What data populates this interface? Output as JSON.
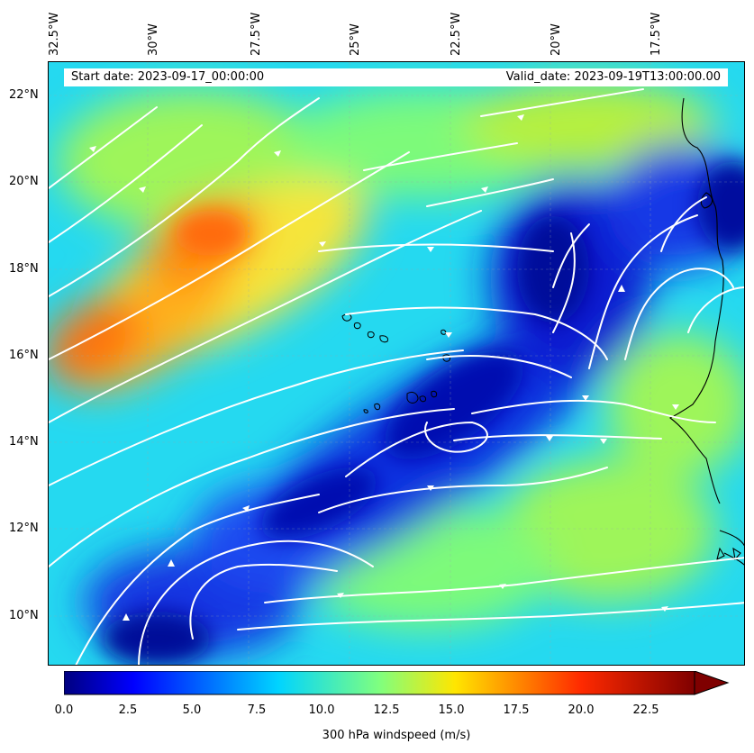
{
  "map": {
    "start_date": "Start date: 2023-09-17_00:00:00",
    "valid_date": "Valid_date: 2023-09-19T13:00:00.00",
    "lon_labels": [
      "32.5°W",
      "30°W",
      "27.5°W",
      "25°W",
      "22.5°W",
      "20°W",
      "17.5°W"
    ],
    "lat_labels": [
      "22°N",
      "20°N",
      "18°N",
      "16°N",
      "14°N",
      "12°N",
      "10°N"
    ],
    "field": "300 hPa windspeed",
    "colorbar": {
      "label": "300 hPa windspeed (m/s)",
      "ticks": [
        "0.0",
        "2.5",
        "5.0",
        "7.5",
        "10.0",
        "12.5",
        "15.0",
        "17.5",
        "20.0",
        "22.5"
      ],
      "min": 0,
      "max": 25,
      "extend": "max"
    },
    "colors": {
      "low": "#00007f",
      "mid_low": "#00bfff",
      "mid": "#7fff7f",
      "mid_high": "#ffbf00",
      "high": "#7f0000",
      "streamlines": "#ffffff",
      "coastline": "#000000"
    }
  }
}
